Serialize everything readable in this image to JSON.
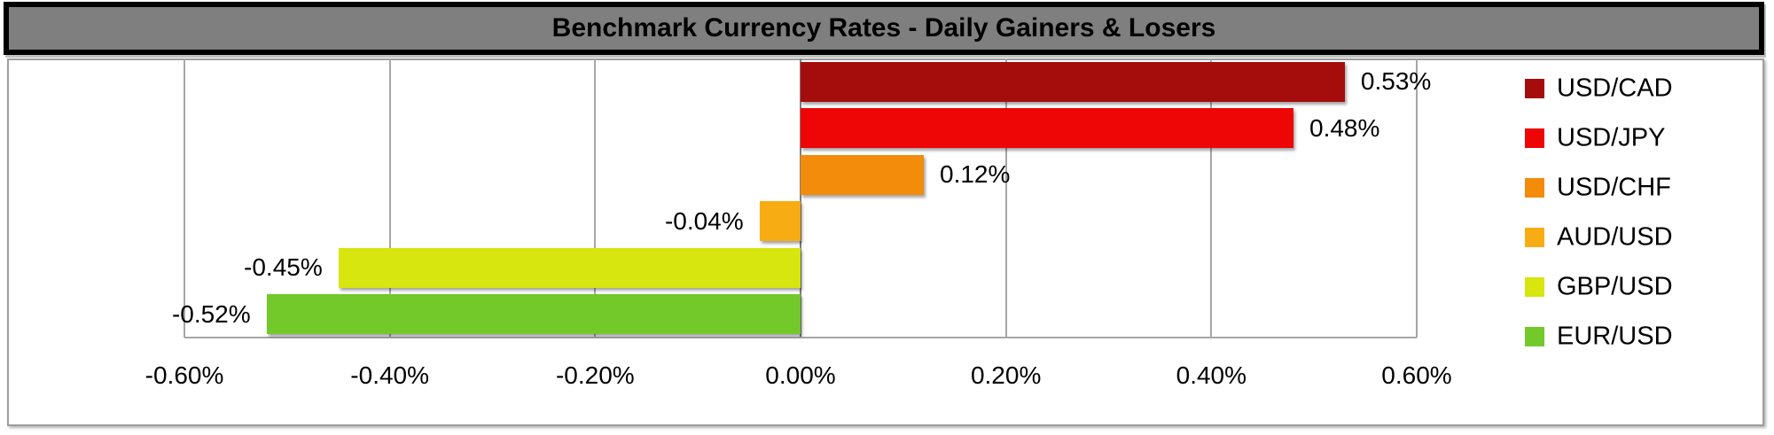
{
  "title": "Benchmark Currency Rates - Daily Gainers & Losers",
  "styles": {
    "title_bg": "#7F7F7F",
    "title_text_color": "#000000",
    "title_border_color": "#000000",
    "chart_border_color": "#9E9E9E",
    "gridline_color": "#A6A6A6",
    "zero_line_color": "#808080",
    "axis_line_color": "#A6A6A6",
    "background": "#FFFFFF"
  },
  "chart_data": {
    "type": "bar",
    "orientation": "horizontal",
    "title": "Benchmark Currency Rates - Daily Gainers & Losers",
    "categories": [
      "USD/CAD",
      "USD/JPY",
      "USD/CHF",
      "AUD/USD",
      "GBP/USD",
      "EUR/USD"
    ],
    "values": [
      0.53,
      0.48,
      0.12,
      -0.04,
      -0.45,
      -0.52
    ],
    "value_labels": [
      "0.53%",
      "0.48%",
      "0.12%",
      "-0.04%",
      "-0.45%",
      "-0.52%"
    ],
    "colors": [
      "#A50D0D",
      "#EE0505",
      "#F38B0B",
      "#F8AC14",
      "#D6E60E",
      "#72C929"
    ],
    "units": "percent",
    "xlim": [
      -0.6,
      0.6
    ],
    "x_ticks": [
      {
        "value": -0.6,
        "label": "-0.60%"
      },
      {
        "value": -0.4,
        "label": "-0.40%"
      },
      {
        "value": -0.2,
        "label": "-0.20%"
      },
      {
        "value": 0.0,
        "label": "0.00%"
      },
      {
        "value": 0.2,
        "label": "0.20%"
      },
      {
        "value": 0.4,
        "label": "0.40%"
      },
      {
        "value": 0.6,
        "label": "0.60%"
      }
    ],
    "xlabel": "",
    "ylabel": "",
    "grid": true,
    "legend_position": "right",
    "legend": [
      "USD/CAD",
      "USD/JPY",
      "USD/CHF",
      "AUD/USD",
      "GBP/USD",
      "EUR/USD"
    ]
  }
}
